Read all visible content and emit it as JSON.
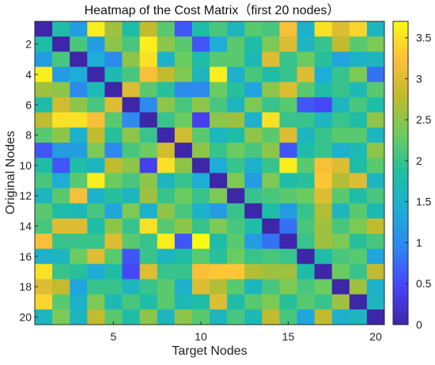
{
  "chart_data": {
    "type": "heatmap",
    "title": "Heatmap of the Cost Matrix（first 20 nodes）",
    "xlabel": "Target Nodes",
    "ylabel": "Original Nodes",
    "x_ticks": [
      "5",
      "10",
      "15",
      "20"
    ],
    "x_tick_values": [
      5,
      10,
      15,
      20
    ],
    "y_ticks": [
      "2",
      "4",
      "6",
      "8",
      "10",
      "12",
      "14",
      "16",
      "18",
      "20"
    ],
    "y_tick_values": [
      2,
      4,
      6,
      8,
      10,
      12,
      14,
      16,
      18,
      20
    ],
    "colorbar_ticks": [
      "0",
      "0.5",
      "1",
      "1.5",
      "2",
      "2.5",
      "3",
      "3.5"
    ],
    "colorbar_tick_values": [
      0,
      0.5,
      1,
      1.5,
      2,
      2.5,
      3,
      3.5
    ],
    "color_range": [
      0,
      3.7
    ],
    "colormap": [
      "#3e26a8",
      "#4743f8",
      "#2f84f1",
      "#1dadd8",
      "#1fbfa2",
      "#6ccc5e",
      "#bebb2e",
      "#fdbf3a",
      "#f9fb15"
    ],
    "rows": 20,
    "cols": 20,
    "values": [
      [
        0.0,
        1.8,
        1.2,
        3.6,
        2.6,
        1.8,
        2.8,
        2.2,
        0.6,
        1.8,
        2.1,
        1.6,
        2.2,
        2.1,
        3.2,
        1.5,
        3.5,
        3.0,
        3.4,
        1.6
      ],
      [
        1.8,
        0.0,
        2.1,
        1.2,
        2.5,
        2.1,
        3.6,
        2.5,
        2.2,
        0.6,
        1.4,
        2.2,
        1.8,
        2.4,
        3.0,
        1.6,
        2.0,
        2.8,
        2.2,
        2.4
      ],
      [
        1.2,
        2.1,
        0.0,
        1.4,
        1.0,
        2.5,
        3.5,
        1.5,
        2.3,
        1.8,
        2.2,
        2.2,
        1.7,
        3.0,
        2.0,
        2.3,
        1.9,
        1.3,
        1.5,
        1.6
      ],
      [
        3.6,
        1.2,
        1.4,
        0.0,
        1.7,
        2.1,
        3.2,
        2.8,
        2.4,
        1.6,
        3.6,
        1.5,
        2.1,
        1.8,
        2.0,
        3.0,
        1.4,
        2.0,
        2.4,
        0.8
      ],
      [
        2.6,
        2.5,
        1.0,
        1.7,
        0.0,
        3.0,
        2.2,
        1.9,
        1.0,
        1.0,
        2.3,
        1.9,
        1.3,
        2.5,
        3.0,
        2.2,
        1.8,
        2.0,
        1.7,
        2.2
      ],
      [
        1.8,
        2.9,
        2.5,
        2.1,
        3.0,
        0.0,
        1.0,
        2.5,
        2.1,
        2.5,
        2.1,
        1.6,
        2.4,
        2.0,
        2.2,
        0.6,
        0.5,
        1.6,
        2.1,
        1.8
      ],
      [
        2.8,
        3.5,
        3.5,
        3.2,
        2.2,
        1.0,
        0.0,
        2.0,
        2.3,
        0.4,
        2.5,
        2.6,
        1.5,
        3.5,
        2.0,
        2.0,
        1.6,
        2.0,
        1.8,
        2.5
      ],
      [
        2.2,
        2.5,
        1.5,
        2.8,
        1.9,
        2.5,
        2.0,
        0.0,
        2.9,
        2.2,
        1.6,
        1.8,
        2.5,
        2.2,
        3.0,
        1.6,
        2.0,
        2.2,
        2.2,
        1.6
      ],
      [
        0.6,
        1.2,
        1.2,
        2.4,
        1.0,
        2.1,
        2.3,
        2.9,
        0.0,
        2.5,
        2.0,
        2.3,
        2.1,
        2.5,
        0.6,
        1.8,
        2.0,
        1.5,
        1.7,
        2.5
      ],
      [
        1.8,
        0.6,
        1.8,
        1.6,
        2.8,
        2.5,
        0.4,
        3.5,
        2.5,
        0.0,
        1.4,
        2.0,
        1.5,
        2.0,
        3.6,
        2.2,
        3.2,
        3.0,
        1.8,
        2.2
      ],
      [
        2.1,
        1.4,
        2.2,
        3.6,
        2.3,
        2.1,
        2.5,
        1.6,
        2.0,
        1.4,
        0.0,
        2.4,
        1.2,
        2.4,
        1.8,
        1.9,
        3.3,
        2.7,
        3.0,
        1.6
      ],
      [
        1.6,
        2.2,
        3.2,
        1.5,
        1.9,
        1.6,
        2.6,
        2.0,
        2.3,
        2.0,
        2.4,
        0.0,
        2.0,
        2.1,
        2.2,
        2.3,
        3.0,
        2.2,
        1.8,
        2.1
      ],
      [
        2.2,
        1.8,
        1.7,
        2.1,
        1.3,
        2.4,
        1.5,
        2.5,
        2.1,
        1.5,
        1.2,
        2.0,
        0.0,
        1.8,
        1.2,
        2.0,
        2.7,
        1.6,
        2.2,
        1.7
      ],
      [
        2.1,
        3.0,
        3.0,
        1.8,
        2.5,
        2.0,
        3.5,
        2.2,
        2.5,
        2.0,
        2.4,
        2.1,
        1.8,
        0.0,
        0.8,
        2.1,
        2.6,
        2.1,
        2.4,
        2.8
      ],
      [
        3.2,
        2.0,
        2.0,
        2.0,
        3.0,
        2.2,
        2.0,
        3.6,
        0.6,
        3.7,
        1.8,
        2.2,
        1.2,
        0.8,
        0.0,
        2.0,
        2.6,
        2.4,
        1.9,
        2.1
      ],
      [
        1.5,
        1.6,
        2.3,
        3.0,
        2.2,
        0.6,
        2.0,
        1.6,
        1.8,
        2.2,
        1.9,
        2.3,
        2.0,
        2.1,
        2.0,
        0.0,
        1.8,
        2.1,
        2.2,
        1.3
      ],
      [
        3.5,
        2.0,
        1.9,
        1.4,
        1.8,
        0.5,
        3.0,
        2.0,
        2.0,
        3.2,
        3.3,
        3.3,
        2.7,
        2.6,
        2.6,
        1.8,
        0.0,
        2.3,
        2.0,
        2.8
      ],
      [
        3.0,
        2.8,
        1.3,
        2.0,
        2.0,
        1.6,
        2.0,
        2.2,
        1.5,
        3.0,
        2.7,
        2.2,
        1.6,
        2.1,
        2.4,
        2.1,
        2.3,
        0.0,
        2.6,
        1.5
      ],
      [
        3.4,
        2.2,
        1.5,
        2.4,
        1.7,
        2.1,
        1.8,
        2.2,
        1.7,
        1.8,
        3.0,
        1.8,
        2.2,
        2.4,
        1.9,
        2.2,
        2.0,
        2.6,
        0.0,
        1.6
      ],
      [
        1.6,
        2.4,
        1.6,
        2.8,
        2.2,
        1.8,
        2.5,
        1.6,
        2.5,
        2.2,
        1.6,
        2.1,
        1.7,
        2.8,
        2.1,
        1.3,
        2.8,
        1.5,
        1.6,
        0.0
      ]
    ]
  }
}
